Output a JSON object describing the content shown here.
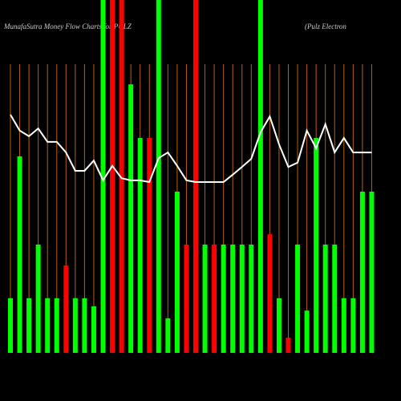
{
  "chart_data": {
    "type": "bar",
    "title": "MunafaSutra  Money Flow  Charts for PULZ",
    "subtitle": "(Pulz Electron",
    "categories": [
      null,
      null,
      null,
      null,
      null,
      null,
      null,
      null,
      null,
      null,
      null,
      null,
      null,
      null,
      null,
      null,
      null,
      null,
      null,
      null,
      null,
      null,
      null,
      null,
      null,
      null,
      null,
      null,
      null,
      null,
      null,
      null,
      null,
      null,
      null,
      null,
      null,
      null,
      null,
      null
    ],
    "values": [
      15.5,
      55.7,
      15.5,
      30.7,
      15.5,
      15.5,
      24.8,
      15.5,
      15.5,
      13.2,
      100,
      100,
      100,
      76.1,
      60.9,
      60.9,
      100,
      9.8,
      45.7,
      30.7,
      100,
      30.7,
      30.7,
      30.7,
      30.7,
      30.7,
      30.7,
      100,
      33.6,
      15.5,
      4.3,
      30.7,
      12,
      60.9,
      30.7,
      30.7,
      15.5,
      15.5,
      45.7,
      45.7
    ],
    "colors": [
      "#00ff00",
      "#00ff00",
      "#00ff00",
      "#00ff00",
      "#00ff00",
      "#00ff00",
      "#ff0000",
      "#00ff00",
      "#00ff00",
      "#00ff00",
      "#00ff00",
      "#ff0000",
      "#ff0000",
      "#00ff00",
      "#00ff00",
      "#ff0000",
      "#00ff00",
      "#00ff00",
      "#00ff00",
      "#ff0000",
      "#ff0000",
      "#00ff00",
      "#ff0000",
      "#00ff00",
      "#00ff00",
      "#00ff00",
      "#00ff00",
      "#00ff00",
      "#ff0000",
      "#00ff00",
      "#ff0000",
      "#00ff00",
      "#00ff00",
      "#00ff00",
      "#00ff00",
      "#00ff00",
      "#00ff00",
      "#00ff00",
      "#00ff00",
      "#00ff00"
    ],
    "line": {
      "color": "#ffffff",
      "values": [
        67.5,
        63.0,
        61.4,
        63.6,
        59.8,
        59.8,
        56.8,
        51.6,
        51.6,
        54.5,
        48.9,
        53.0,
        49.5,
        48.9,
        48.9,
        48.4,
        55.2,
        56.8,
        53.0,
        48.9,
        48.4,
        48.4,
        48.4,
        48.4,
        50.5,
        52.7,
        55.0,
        62.5,
        67.0,
        59.1,
        52.7,
        53.9,
        63.0,
        58.0,
        64.8,
        56.8,
        60.9,
        56.8,
        56.8,
        56.8
      ]
    },
    "ylim": [
      0,
      100
    ],
    "grid": true,
    "grid_color": "#b8600b"
  }
}
